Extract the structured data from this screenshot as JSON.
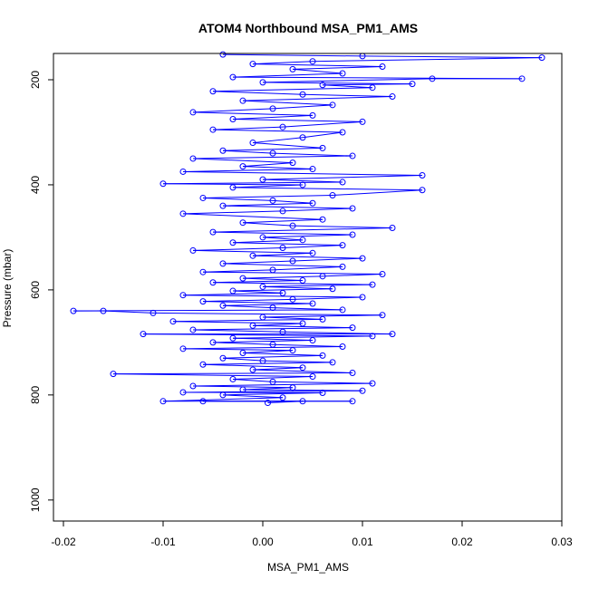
{
  "chart_data": {
    "type": "line",
    "title": "ATOM4 Northbound MSA_PM1_AMS",
    "xlabel": "MSA_PM1_AMS",
    "ylabel": "Pressure (mbar)",
    "xlim": [
      -0.021,
      0.03
    ],
    "ylim": [
      1040,
      150
    ],
    "y_reversed": true,
    "x_ticks": [
      -0.02,
      -0.01,
      0.0,
      0.01,
      0.02,
      0.03
    ],
    "x_tick_labels": [
      "-0.02",
      "-0.01",
      "0.00",
      "0.01",
      "0.02",
      "0.03"
    ],
    "y_ticks": [
      200,
      400,
      600,
      800,
      1000
    ],
    "y_tick_labels": [
      "200",
      "400",
      "600",
      "800",
      "1000"
    ],
    "grid": false,
    "marker": "open-circle",
    "colors": {
      "series": "#0000ff",
      "axis": "#000000",
      "background": "#ffffff"
    },
    "series": [
      {
        "values": [
          [
            0.0005,
            815
          ],
          [
            0.004,
            812
          ],
          [
            -0.006,
            812
          ],
          [
            0.009,
            812
          ],
          [
            -0.01,
            812
          ],
          [
            0.002,
            805
          ],
          [
            -0.004,
            800
          ],
          [
            0.006,
            796
          ],
          [
            -0.008,
            795
          ],
          [
            0.01,
            792
          ],
          [
            -0.002,
            790
          ],
          [
            0.003,
            786
          ],
          [
            -0.007,
            783
          ],
          [
            0.011,
            778
          ],
          [
            0.001,
            775
          ],
          [
            -0.003,
            770
          ],
          [
            0.005,
            765
          ],
          [
            -0.015,
            760
          ],
          [
            0.009,
            758
          ],
          [
            -0.001,
            752
          ],
          [
            0.004,
            748
          ],
          [
            -0.006,
            742
          ],
          [
            0.007,
            738
          ],
          [
            0.0,
            735
          ],
          [
            -0.004,
            730
          ],
          [
            0.006,
            725
          ],
          [
            -0.002,
            720
          ],
          [
            0.003,
            715
          ],
          [
            -0.008,
            712
          ],
          [
            0.008,
            708
          ],
          [
            0.001,
            704
          ],
          [
            -0.005,
            700
          ],
          [
            0.005,
            696
          ],
          [
            -0.003,
            692
          ],
          [
            0.011,
            688
          ],
          [
            -0.012,
            684
          ],
          [
            0.013,
            684
          ],
          [
            0.002,
            680
          ],
          [
            -0.007,
            676
          ],
          [
            0.009,
            672
          ],
          [
            -0.001,
            668
          ],
          [
            0.004,
            664
          ],
          [
            -0.009,
            660
          ],
          [
            0.006,
            656
          ],
          [
            0.0,
            652
          ],
          [
            0.012,
            648
          ],
          [
            -0.011,
            644
          ],
          [
            -0.016,
            640
          ],
          [
            -0.019,
            640
          ],
          [
            0.008,
            638
          ],
          [
            0.001,
            634
          ],
          [
            -0.004,
            630
          ],
          [
            0.005,
            626
          ],
          [
            -0.006,
            622
          ],
          [
            0.003,
            618
          ],
          [
            0.01,
            614
          ],
          [
            -0.008,
            610
          ],
          [
            0.002,
            606
          ],
          [
            -0.003,
            602
          ],
          [
            0.007,
            598
          ],
          [
            0.0,
            594
          ],
          [
            0.011,
            590
          ],
          [
            -0.005,
            586
          ],
          [
            0.004,
            582
          ],
          [
            -0.002,
            578
          ],
          [
            0.006,
            574
          ],
          [
            0.012,
            570
          ],
          [
            -0.006,
            566
          ],
          [
            0.001,
            562
          ],
          [
            0.008,
            556
          ],
          [
            -0.004,
            550
          ],
          [
            0.003,
            545
          ],
          [
            0.01,
            540
          ],
          [
            -0.001,
            535
          ],
          [
            0.005,
            530
          ],
          [
            -0.007,
            525
          ],
          [
            0.002,
            520
          ],
          [
            0.008,
            515
          ],
          [
            -0.003,
            510
          ],
          [
            0.004,
            505
          ],
          [
            0.0,
            500
          ],
          [
            0.009,
            495
          ],
          [
            -0.005,
            490
          ],
          [
            0.013,
            482
          ],
          [
            0.003,
            478
          ],
          [
            -0.002,
            472
          ],
          [
            0.006,
            466
          ],
          [
            -0.008,
            455
          ],
          [
            0.002,
            450
          ],
          [
            0.009,
            445
          ],
          [
            -0.004,
            440
          ],
          [
            0.005,
            435
          ],
          [
            0.001,
            430
          ],
          [
            -0.006,
            425
          ],
          [
            0.007,
            420
          ],
          [
            0.016,
            410
          ],
          [
            -0.003,
            405
          ],
          [
            0.004,
            400
          ],
          [
            -0.01,
            398
          ],
          [
            0.008,
            395
          ],
          [
            0.0,
            390
          ],
          [
            0.016,
            382
          ],
          [
            -0.008,
            375
          ],
          [
            0.005,
            370
          ],
          [
            -0.002,
            365
          ],
          [
            0.003,
            358
          ],
          [
            -0.007,
            350
          ],
          [
            0.009,
            345
          ],
          [
            0.001,
            340
          ],
          [
            -0.004,
            335
          ],
          [
            0.006,
            330
          ],
          [
            -0.001,
            320
          ],
          [
            0.004,
            310
          ],
          [
            0.008,
            300
          ],
          [
            -0.005,
            295
          ],
          [
            0.002,
            290
          ],
          [
            0.01,
            280
          ],
          [
            -0.003,
            275
          ],
          [
            0.005,
            268
          ],
          [
            -0.007,
            262
          ],
          [
            0.001,
            255
          ],
          [
            0.007,
            248
          ],
          [
            -0.002,
            240
          ],
          [
            0.013,
            232
          ],
          [
            0.004,
            228
          ],
          [
            -0.005,
            222
          ],
          [
            0.011,
            215
          ],
          [
            0.006,
            210
          ],
          [
            0.015,
            208
          ],
          [
            0.0,
            205
          ],
          [
            0.017,
            198
          ],
          [
            0.026,
            198
          ],
          [
            -0.003,
            195
          ],
          [
            0.008,
            188
          ],
          [
            0.003,
            180
          ],
          [
            0.012,
            175
          ],
          [
            -0.001,
            170
          ],
          [
            0.005,
            165
          ],
          [
            0.028,
            158
          ],
          [
            0.01,
            155
          ],
          [
            -0.004,
            152
          ]
        ]
      }
    ]
  }
}
